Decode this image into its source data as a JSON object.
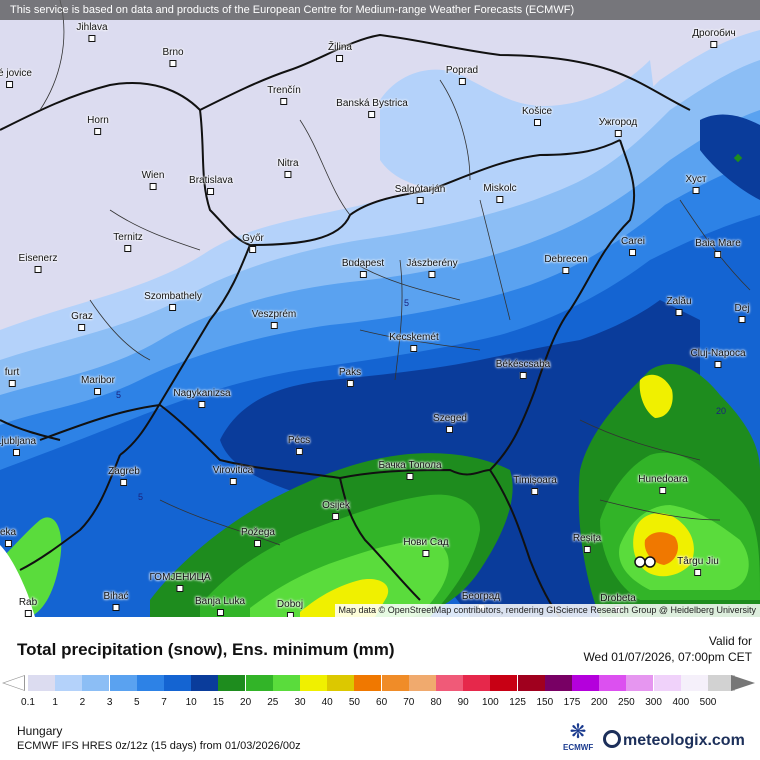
{
  "disclaimer": "This service is based on data and products of the European Centre for Medium-range Weather Forecasts (ECMWF)",
  "attribution": "Map data © OpenStreetMap contributors, rendering GIScience Research Group @ Heidelberg University",
  "title": "Total precipitation (snow), Ens. minimum (mm)",
  "valid_label": "Valid for",
  "valid_date": "Wed 01/07/2026, 07:00pm CET",
  "region": "Hungary",
  "model_info": "ECMWF IFS HRES 0z/12z (15 days) from 01/03/2026/00z",
  "ecmwf_logo_text": "ECMWF",
  "brand": "meteologix.com",
  "legend": {
    "labels": [
      "0.1",
      "1",
      "2",
      "3",
      "5",
      "7",
      "10",
      "15",
      "20",
      "25",
      "30",
      "40",
      "50",
      "60",
      "70",
      "80",
      "90",
      "100",
      "125",
      "150",
      "175",
      "200",
      "250",
      "300",
      "400",
      "500"
    ],
    "colors": [
      "#dcdcf0",
      "#b4d2fa",
      "#8cbef5",
      "#5aa2f0",
      "#2d82e6",
      "#1464d2",
      "#0a3c9b",
      "#1e8c1e",
      "#32b428",
      "#5adc3c",
      "#f0f000",
      "#dcc800",
      "#f07800",
      "#f08c28",
      "#f0aa6e",
      "#f05a78",
      "#e6284b",
      "#c80014",
      "#a0001e",
      "#780064",
      "#b400dc",
      "#dc50f0",
      "#e696f0",
      "#f0d2fa",
      "#f5f0fa",
      "#d2d2d2"
    ]
  },
  "map": {
    "contour_label": "5",
    "contour_label_2": "20",
    "cities": [
      {
        "name": "Jihlava"
      },
      {
        "name": "Brno"
      },
      {
        "name": "Žilina"
      },
      {
        "name": "Poprad"
      },
      {
        "name": "Дрогобич"
      },
      {
        "name": "Banská Bystrica"
      },
      {
        "name": "Trenčín"
      },
      {
        "name": "Košice"
      },
      {
        "name": "Ужгород"
      },
      {
        "name": "Horn"
      },
      {
        "name": "Nitra"
      },
      {
        "name": "Wien"
      },
      {
        "name": "Bratislava"
      },
      {
        "name": "Хуст"
      },
      {
        "name": "Salgótarján"
      },
      {
        "name": "Miskolc"
      },
      {
        "name": "Győr"
      },
      {
        "name": "Ternitz"
      },
      {
        "name": "Carei"
      },
      {
        "name": "Baia Mare"
      },
      {
        "name": "Eisenerz"
      },
      {
        "name": "Budapest"
      },
      {
        "name": "Jászberény"
      },
      {
        "name": "Debrecen"
      },
      {
        "name": "Szombathely"
      },
      {
        "name": "Zalău"
      },
      {
        "name": "Graz"
      },
      {
        "name": "Veszprém"
      },
      {
        "name": "Dej"
      },
      {
        "name": "Kecskemét"
      },
      {
        "name": "Cluj-Napoca"
      },
      {
        "name": "Maribor"
      },
      {
        "name": "Paks"
      },
      {
        "name": "Békéscsaba"
      },
      {
        "name": "Nagykanizsa"
      },
      {
        "name": "Szeged"
      },
      {
        "name": "Pécs"
      },
      {
        "name": "Zagreb"
      },
      {
        "name": "Virovitica"
      },
      {
        "name": "Бачка Топола"
      },
      {
        "name": "Hunedoara"
      },
      {
        "name": "Timișoara"
      },
      {
        "name": "Osijek"
      },
      {
        "name": "Požega"
      },
      {
        "name": "Нови Сад"
      },
      {
        "name": "Reșița"
      },
      {
        "name": "Târgu Jiu"
      },
      {
        "name": "ГОМЈЕНИЦА"
      },
      {
        "name": "Bihać"
      },
      {
        "name": "Banja Luka"
      },
      {
        "name": "Doboj"
      },
      {
        "name": "Београд"
      },
      {
        "name": "Drobeta"
      },
      {
        "name": "Rab"
      },
      {
        "name": "Ljubljana"
      },
      {
        "name": "furt"
      },
      {
        "name": "eka"
      },
      {
        "name": "ské jovice"
      }
    ]
  }
}
